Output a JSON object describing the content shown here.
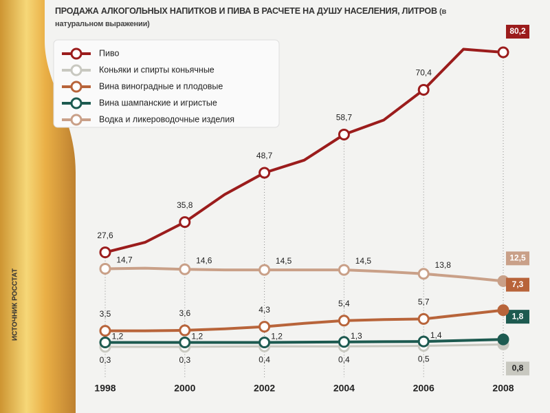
{
  "chart_data": {
    "type": "line",
    "title": "ПРОДАЖА АЛКОГОЛЬНЫХ НАПИТКОВ И ПИВА В РАСЧЕТЕ НА ДУШУ НАСЕЛЕНИЯ, ЛИТРОВ",
    "subtitle": "(в натуральном выражении)",
    "source": "ИСТОЧНИК РОССТАТ",
    "categories": [
      "1998",
      null,
      "2000",
      null,
      "2002",
      null,
      "2004",
      null,
      "2006",
      null,
      "2008"
    ],
    "series": [
      {
        "name": "Пиво",
        "color": "#9b1c1c",
        "values": [
          27.6,
          30.5,
          35.8,
          43,
          48.7,
          52,
          58.7,
          62.5,
          70.4,
          81,
          80.2
        ],
        "value_labels": [
          "27,6",
          null,
          "35,8",
          null,
          "48,7",
          null,
          "58,7",
          null,
          "70,4",
          null,
          "80,2"
        ]
      },
      {
        "name": "Коньяки и спирты коньячные",
        "color": "#c8c8c0",
        "values": [
          0.3,
          0.3,
          0.3,
          0.35,
          0.4,
          0.4,
          0.4,
          0.45,
          0.5,
          0.65,
          0.8
        ],
        "value_labels": [
          "0,3",
          null,
          "0,3",
          null,
          "0,4",
          null,
          "0,4",
          null,
          "0,5",
          null,
          "0,8"
        ]
      },
      {
        "name": "Вина виноградные и плодовые",
        "color": "#b8643a",
        "values": [
          3.5,
          3.5,
          3.6,
          3.9,
          4.3,
          4.9,
          5.4,
          5.6,
          5.7,
          6.5,
          7.3
        ],
        "value_labels": [
          "3,5",
          null,
          "3,6",
          null,
          "4,3",
          null,
          "5,4",
          null,
          "5,7",
          null,
          "7,3"
        ]
      },
      {
        "name": "Вина шампанские и игристые",
        "color": "#1d5a50",
        "values": [
          1.2,
          1.2,
          1.2,
          1.2,
          1.2,
          1.25,
          1.3,
          1.35,
          1.4,
          1.6,
          1.8
        ],
        "value_labels": [
          "1,2",
          null,
          "1,2",
          null,
          "1,2",
          null,
          "1,3",
          null,
          "1,4",
          null,
          "1,8"
        ]
      },
      {
        "name": "Водка и ликероводочные изделия",
        "color": "#c9a088",
        "values": [
          14.7,
          14.8,
          14.6,
          14.5,
          14.5,
          14.5,
          14.5,
          14.2,
          13.8,
          13.2,
          12.5
        ],
        "value_labels": [
          "14,7",
          null,
          "14,6",
          null,
          "14,5",
          null,
          "14,5",
          null,
          "13,8",
          null,
          "12,5"
        ]
      }
    ]
  }
}
